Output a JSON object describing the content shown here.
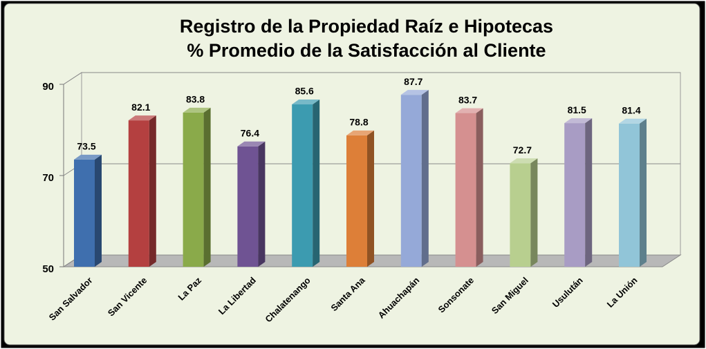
{
  "chart_data": {
    "type": "bar3d",
    "title": [
      "Registro de la Propiedad Raíz e Hipotecas",
      "% Promedio de la Satisfacción al Cliente"
    ],
    "categories": [
      "San Salvador",
      "San Vicente",
      "La Paz",
      "La Libertad",
      "Chalatenango",
      "Santa Ana",
      "Ahuachapán",
      "Sonsonate",
      "San Miguel",
      "Usulután",
      "La Unión"
    ],
    "values": [
      73.5,
      82.1,
      83.8,
      76.4,
      85.6,
      78.8,
      87.7,
      83.7,
      72.7,
      81.5,
      81.4
    ],
    "colors": [
      "#3f6fae",
      "#b44040",
      "#8aaa4a",
      "#6f5393",
      "#3c9bb0",
      "#dd7f38",
      "#95a9d8",
      "#d59090",
      "#b8cf8f",
      "#a89cc4",
      "#91c5d8"
    ],
    "ylim": [
      50,
      90
    ],
    "yticks": [
      50,
      70,
      90
    ],
    "grid": true
  }
}
